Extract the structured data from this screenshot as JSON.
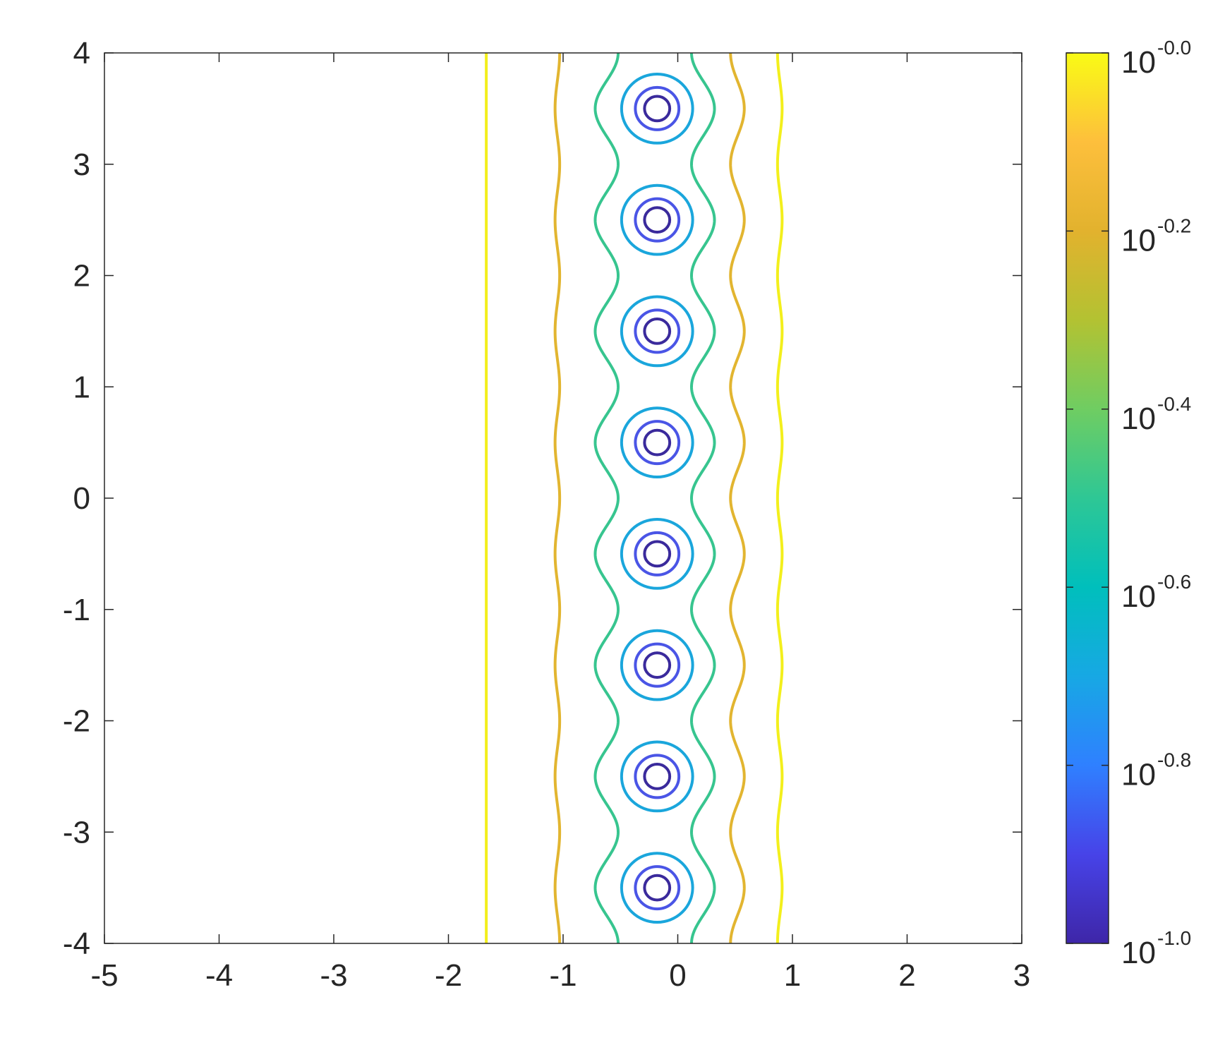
{
  "chart_data": {
    "type": "contour",
    "title": "",
    "xlabel": "",
    "ylabel": "",
    "xlim": [
      -5,
      3
    ],
    "ylim": [
      -4,
      4
    ],
    "xticks": [
      "-5",
      "-4",
      "-3",
      "-2",
      "-1",
      "0",
      "1",
      "2",
      "3"
    ],
    "yticks": [
      "4",
      "3",
      "2",
      "1",
      "0",
      "-1",
      "-2",
      "-3",
      "-4"
    ],
    "colorbar": {
      "scale": "log",
      "range": [
        0.1,
        1.0
      ],
      "ticks": [
        {
          "base": "10",
          "exp": "-0.0"
        },
        {
          "base": "10",
          "exp": "-0.2"
        },
        {
          "base": "10",
          "exp": "-0.4"
        },
        {
          "base": "10",
          "exp": "-0.6"
        },
        {
          "base": "10",
          "exp": "-0.8"
        },
        {
          "base": "10",
          "exp": "-1.0"
        }
      ],
      "colormap": [
        "#3e26a8",
        "#4743e8",
        "#2f80ff",
        "#17a8e4",
        "#00bfbc",
        "#2ec795",
        "#6fcd62",
        "#b3c232",
        "#e2b22e",
        "#fdbf3c",
        "#f9fb15"
      ]
    },
    "centers": {
      "x": -0.2,
      "y": [
        3.5,
        2.5,
        1.5,
        0.5,
        -0.5,
        -1.5,
        -2.5,
        -3.5
      ]
    },
    "circle_levels": [
      {
        "log_level": -0.97,
        "radius": 0.11,
        "color": "#3a2a9c"
      },
      {
        "log_level": -0.85,
        "radius": 0.19,
        "color": "#4a55e6"
      },
      {
        "log_level": -0.64,
        "radius": 0.31,
        "color": "#1aa6dc"
      }
    ],
    "vertical_levels": [
      {
        "log_level": -0.4,
        "x_base": -0.62,
        "amplitude": 0.1,
        "side": "left",
        "color": "#37c58f"
      },
      {
        "log_level": -0.4,
        "x_base": 0.22,
        "amplitude": 0.1,
        "side": "right",
        "color": "#37c58f"
      },
      {
        "log_level": -0.18,
        "x_base": -1.05,
        "amplitude": 0.02,
        "side": "left",
        "color": "#e2b530"
      },
      {
        "log_level": -0.18,
        "x_base": 0.52,
        "amplitude": 0.06,
        "side": "right",
        "color": "#e2b530"
      },
      {
        "log_level": -0.02,
        "x_base": -1.67,
        "amplitude": 0.0,
        "side": "left",
        "color": "#f3ef1c"
      },
      {
        "log_level": -0.02,
        "x_base": 0.89,
        "amplitude": 0.02,
        "side": "right",
        "color": "#f3ef1c"
      }
    ]
  }
}
